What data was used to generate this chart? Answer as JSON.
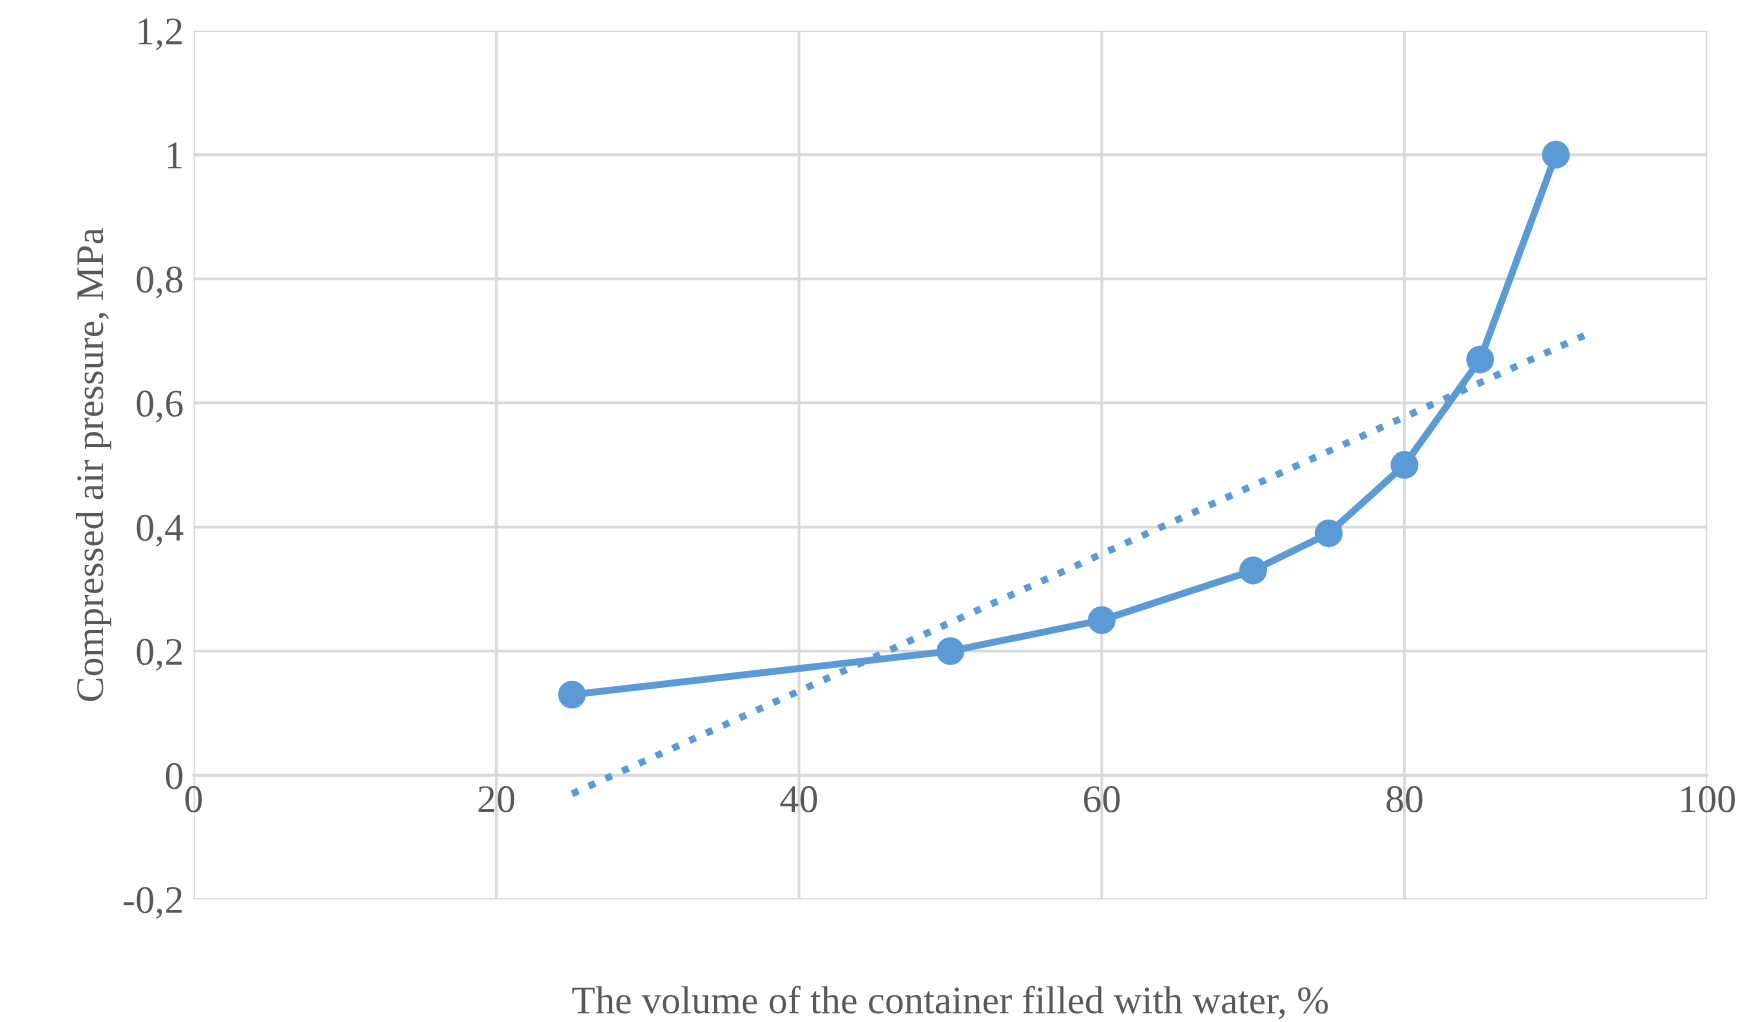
{
  "chart_data": {
    "type": "line",
    "xlabel": "The volume of the container filled with water, %",
    "ylabel": "Compressed air pressure, MPa",
    "series": [
      {
        "x": [
          25,
          50,
          60,
          70,
          75,
          80,
          85,
          90
        ],
        "values": [
          0.13,
          0.2,
          0.25,
          0.33,
          0.39,
          0.5,
          0.67,
          1.0
        ],
        "color": "#5b9bd5",
        "marker": "circle",
        "line_style": "solid"
      },
      {
        "x": [
          25,
          92
        ],
        "values": [
          -0.03,
          0.71
        ],
        "color": "#5b9bd5",
        "marker": "none",
        "line_style": "dotted"
      }
    ],
    "xlim": [
      0,
      100
    ],
    "xticks": [
      0,
      20,
      40,
      60,
      80,
      100
    ],
    "ylim": [
      -0.2,
      1.2
    ],
    "yticks": [
      {
        "value": -0.2,
        "label": "-0,2"
      },
      0,
      {
        "value": 0.2,
        "label": "0,2"
      },
      {
        "value": 0.4,
        "label": "0,4"
      },
      {
        "value": 0.6,
        "label": "0,6"
      },
      {
        "value": 0.8,
        "label": "0,8"
      },
      1,
      {
        "value": 1.2,
        "label": "1,2"
      }
    ],
    "grid": true
  }
}
